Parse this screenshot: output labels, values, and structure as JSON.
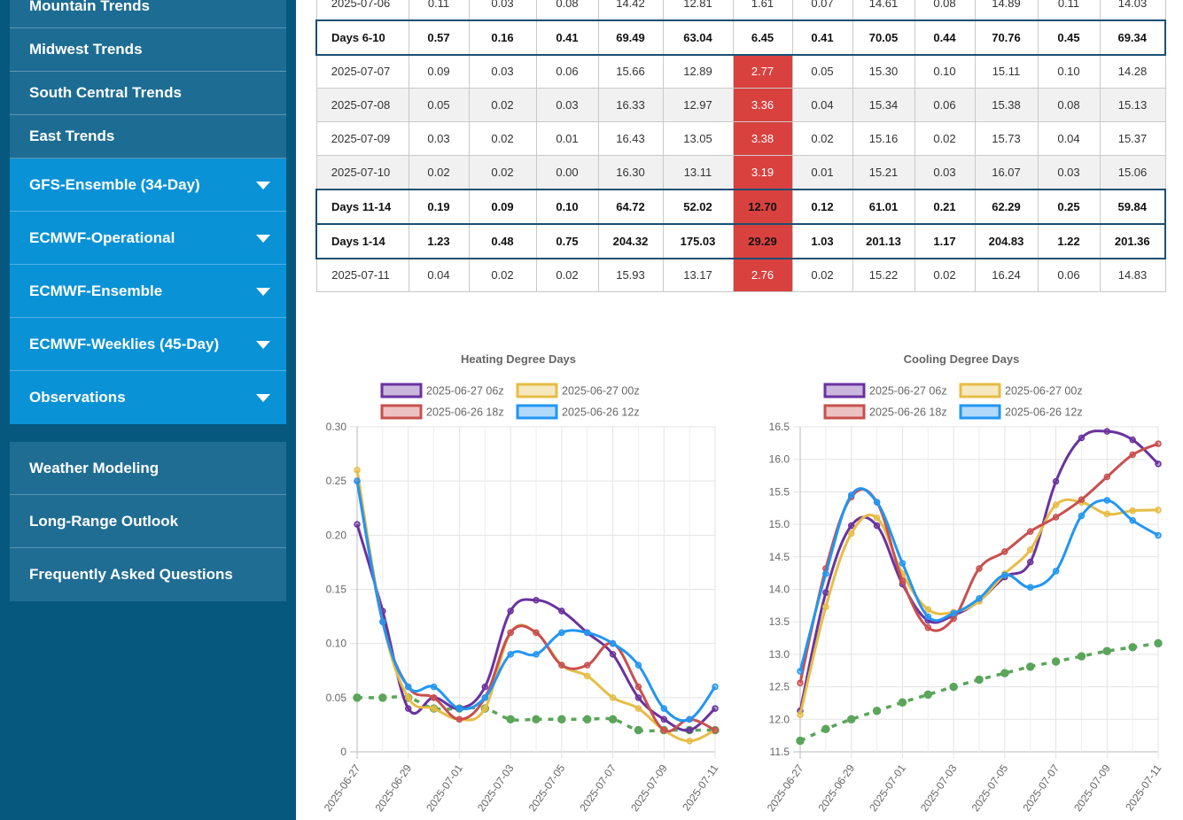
{
  "sidebar": {
    "top_items": [
      "Mountain Trends",
      "Midwest Trends",
      "South Central Trends",
      "East Trends"
    ],
    "expandable_items": [
      "GFS-Ensemble (34-Day)",
      "ECMWF-Operational",
      "ECMWF-Ensemble",
      "ECMWF-Weeklies (45-Day)",
      "Observations"
    ],
    "bottom_items": [
      "Weather Modeling",
      "Long-Range Outlook",
      "Frequently Asked Questions"
    ]
  },
  "table": {
    "rows": [
      {
        "kind": "day",
        "cells": [
          "2025-07-06",
          "0.11",
          "0.03",
          "0.08",
          "14.42",
          "12.81",
          "1.61",
          "0.07",
          "14.61",
          "0.08",
          "14.89",
          "0.11",
          "14.03"
        ]
      },
      {
        "kind": "sum",
        "cells": [
          "Days 6-10",
          "0.57",
          "0.16",
          "0.41",
          "69.49",
          "63.04",
          "6.45",
          "0.41",
          "70.05",
          "0.44",
          "70.76",
          "0.45",
          "69.34"
        ]
      },
      {
        "kind": "day",
        "hot": true,
        "cells": [
          "2025-07-07",
          "0.09",
          "0.03",
          "0.06",
          "15.66",
          "12.89",
          "2.77",
          "0.05",
          "15.30",
          "0.10",
          "15.11",
          "0.10",
          "14.28"
        ]
      },
      {
        "kind": "day",
        "hot": true,
        "cells": [
          "2025-07-08",
          "0.05",
          "0.02",
          "0.03",
          "16.33",
          "12.97",
          "3.36",
          "0.04",
          "15.34",
          "0.06",
          "15.38",
          "0.08",
          "15.13"
        ]
      },
      {
        "kind": "day",
        "hot": true,
        "cells": [
          "2025-07-09",
          "0.03",
          "0.02",
          "0.01",
          "16.43",
          "13.05",
          "3.38",
          "0.02",
          "15.16",
          "0.02",
          "15.73",
          "0.04",
          "15.37"
        ]
      },
      {
        "kind": "day",
        "hot": true,
        "cells": [
          "2025-07-10",
          "0.02",
          "0.02",
          "0.00",
          "16.30",
          "13.11",
          "3.19",
          "0.01",
          "15.21",
          "0.03",
          "16.07",
          "0.03",
          "15.06"
        ]
      },
      {
        "kind": "sum",
        "hot": true,
        "cells": [
          "Days 11-14",
          "0.19",
          "0.09",
          "0.10",
          "64.72",
          "52.02",
          "12.70",
          "0.12",
          "61.01",
          "0.21",
          "62.29",
          "0.25",
          "59.84"
        ]
      },
      {
        "kind": "sum",
        "hot": true,
        "cells": [
          "Days 1-14",
          "1.23",
          "0.48",
          "0.75",
          "204.32",
          "175.03",
          "29.29",
          "1.03",
          "201.13",
          "1.17",
          "204.83",
          "1.22",
          "201.36"
        ]
      },
      {
        "kind": "day",
        "hot": true,
        "cells": [
          "2025-07-11",
          "0.04",
          "0.02",
          "0.02",
          "15.93",
          "13.17",
          "2.76",
          "0.02",
          "15.22",
          "0.02",
          "16.24",
          "0.06",
          "14.83"
        ]
      }
    ]
  },
  "chart_data": [
    {
      "type": "line",
      "title": "Heating Degree Days",
      "xlabel": "",
      "ylabel": "",
      "x": [
        "2025-06-27",
        "2025-06-28",
        "2025-06-29",
        "2025-06-30",
        "2025-07-01",
        "2025-07-02",
        "2025-07-03",
        "2025-07-04",
        "2025-07-05",
        "2025-07-06",
        "2025-07-07",
        "2025-07-08",
        "2025-07-09",
        "2025-07-10",
        "2025-07-11"
      ],
      "x_tick_labels": [
        "2025-06-27",
        "2025-06-29",
        "2025-07-01",
        "2025-07-03",
        "2025-07-05",
        "2025-07-07",
        "2025-07-09",
        "2025-07-11"
      ],
      "ylim": [
        0,
        0.3
      ],
      "y_tick_labels": [
        "0",
        "0.05",
        "0.10",
        "0.15",
        "0.20",
        "0.25",
        "0.30"
      ],
      "grid": true,
      "legend_position": "top",
      "series": [
        {
          "name": "2025-06-27 06z",
          "color": "#6a329f",
          "values": [
            0.21,
            0.13,
            0.04,
            0.05,
            0.04,
            0.06,
            0.13,
            0.14,
            0.13,
            0.11,
            0.09,
            0.05,
            0.03,
            0.02,
            0.04
          ]
        },
        {
          "name": "2025-06-27 00z",
          "color": "#e6bd45",
          "values": [
            0.26,
            0.12,
            0.05,
            0.04,
            0.03,
            0.04,
            0.11,
            0.11,
            0.08,
            0.07,
            0.05,
            0.04,
            0.02,
            0.01,
            0.02
          ]
        },
        {
          "name": "2025-06-26 18z",
          "color": "#c94f4f",
          "values": [
            0.25,
            0.12,
            0.06,
            0.05,
            0.03,
            0.05,
            0.11,
            0.11,
            0.08,
            0.08,
            0.1,
            0.06,
            0.02,
            0.03,
            0.02
          ]
        },
        {
          "name": "2025-06-26 12z",
          "color": "#2196f3",
          "values": [
            0.25,
            0.12,
            0.06,
            0.06,
            0.04,
            0.05,
            0.09,
            0.09,
            0.11,
            0.11,
            0.1,
            0.08,
            0.04,
            0.03,
            0.06
          ]
        },
        {
          "name": "",
          "color": "#5aa55a",
          "dashed": true,
          "values": [
            0.05,
            0.05,
            0.05,
            0.04,
            0.04,
            0.04,
            0.03,
            0.03,
            0.03,
            0.03,
            0.03,
            0.02,
            0.02,
            0.02,
            0.02
          ]
        }
      ]
    },
    {
      "type": "line",
      "title": "Cooling Degree Days",
      "xlabel": "",
      "ylabel": "",
      "x": [
        "2025-06-27",
        "2025-06-28",
        "2025-06-29",
        "2025-06-30",
        "2025-07-01",
        "2025-07-02",
        "2025-07-03",
        "2025-07-04",
        "2025-07-05",
        "2025-07-06",
        "2025-07-07",
        "2025-07-08",
        "2025-07-09",
        "2025-07-10",
        "2025-07-11"
      ],
      "x_tick_labels": [
        "2025-06-27",
        "2025-06-29",
        "2025-07-01",
        "2025-07-03",
        "2025-07-05",
        "2025-07-07",
        "2025-07-09",
        "2025-07-11"
      ],
      "ylim": [
        11.5,
        16.5
      ],
      "y_tick_labels": [
        "11.5",
        "12.0",
        "12.5",
        "13.0",
        "13.5",
        "14.0",
        "14.5",
        "15.0",
        "15.5",
        "16.0",
        "16.5"
      ],
      "grid": true,
      "legend_position": "top",
      "series": [
        {
          "name": "2025-06-27 06z",
          "color": "#6a329f",
          "values": [
            12.13,
            13.95,
            14.98,
            14.98,
            14.08,
            13.52,
            13.6,
            13.82,
            14.19,
            14.42,
            15.66,
            16.33,
            16.43,
            16.3,
            15.93
          ]
        },
        {
          "name": "2025-06-27 00z",
          "color": "#e6bd45",
          "values": [
            12.07,
            13.73,
            14.86,
            15.1,
            14.24,
            13.69,
            13.65,
            13.82,
            14.24,
            14.61,
            15.3,
            15.34,
            15.16,
            15.21,
            15.22
          ]
        },
        {
          "name": "2025-06-26 18z",
          "color": "#c94f4f",
          "values": [
            12.56,
            14.32,
            15.42,
            15.34,
            14.13,
            13.41,
            13.55,
            14.32,
            14.58,
            14.89,
            15.11,
            15.38,
            15.73,
            16.07,
            16.24
          ]
        },
        {
          "name": "2025-06-26 12z",
          "color": "#2196f3",
          "values": [
            12.74,
            14.24,
            15.45,
            15.34,
            14.4,
            13.58,
            13.63,
            13.86,
            14.22,
            14.03,
            14.28,
            15.13,
            15.37,
            15.06,
            14.83
          ]
        },
        {
          "name": "",
          "color": "#5aa55a",
          "dashed": true,
          "values": [
            11.67,
            11.85,
            12.0,
            12.13,
            12.26,
            12.38,
            12.5,
            12.61,
            12.71,
            12.81,
            12.89,
            12.97,
            13.05,
            13.11,
            13.17
          ]
        }
      ]
    }
  ]
}
